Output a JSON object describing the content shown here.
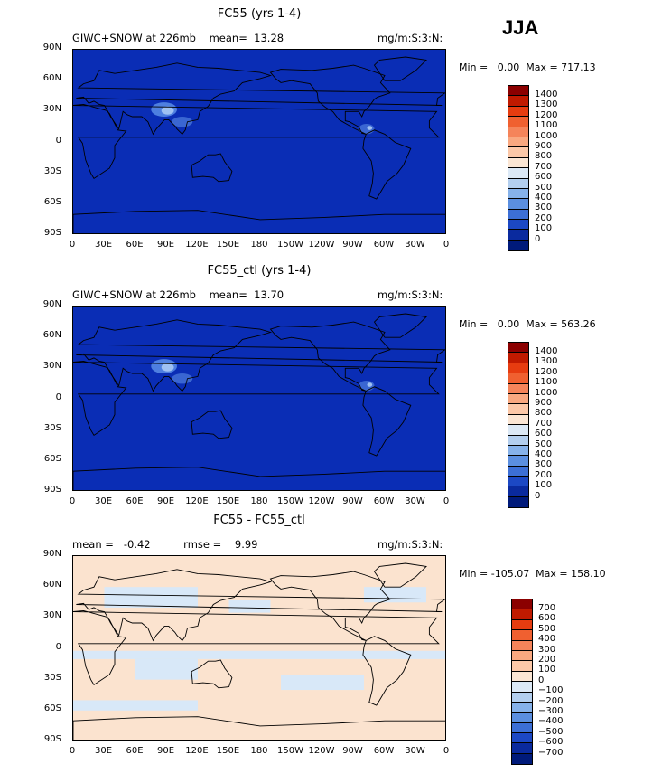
{
  "season": "JJA",
  "panels": [
    {
      "title": "FC55 (yrs 1-4)",
      "left_info": "GIWC+SNOW at 226mb    mean=  13.28",
      "right_info": "mg/m:S:3:N:",
      "minmax": "Min =   0.00  Max = 717.13",
      "colorbar_labels": [
        "1400",
        "1300",
        "1200",
        "1100",
        "1000",
        "900",
        "800",
        "700",
        "600",
        "500",
        "400",
        "300",
        "200",
        "100",
        "0"
      ],
      "colorbar_colors": [
        "#8b0000",
        "#c01a00",
        "#e63c10",
        "#f06030",
        "#f5845a",
        "#f9a880",
        "#fcc8a8",
        "#fbe6d4",
        "#dce9f6",
        "#b3cfef",
        "#86b2ea",
        "#5b8fe0",
        "#3c6fd6",
        "#1c48c4",
        "#0a2a9e",
        "#001a7a"
      ]
    },
    {
      "title": "FC55_ctl (yrs 1-4)",
      "left_info": "GIWC+SNOW at 226mb    mean=  13.70",
      "right_info": "mg/m:S:3:N:",
      "minmax": "Min =   0.00  Max = 563.26",
      "colorbar_labels": [
        "1400",
        "1300",
        "1200",
        "1100",
        "1000",
        "900",
        "800",
        "700",
        "600",
        "500",
        "400",
        "300",
        "200",
        "100",
        "0"
      ],
      "colorbar_colors": [
        "#8b0000",
        "#c01a00",
        "#e63c10",
        "#f06030",
        "#f5845a",
        "#f9a880",
        "#fcc8a8",
        "#fbe6d4",
        "#dce9f6",
        "#b3cfef",
        "#86b2ea",
        "#5b8fe0",
        "#3c6fd6",
        "#1c48c4",
        "#0a2a9e",
        "#001a7a"
      ]
    },
    {
      "title": "FC55 - FC55_ctl",
      "left_info": "mean =   -0.42          rmse =    9.99",
      "right_info": "mg/m:S:3:N:",
      "minmax": "Min = -105.07  Max = 158.10",
      "colorbar_labels": [
        "700",
        "600",
        "500",
        "400",
        "300",
        "200",
        "100",
        "0",
        "−100",
        "−200",
        "−300",
        "−400",
        "−500",
        "−600",
        "−700"
      ],
      "colorbar_colors": [
        "#8b0000",
        "#c01a00",
        "#e63c10",
        "#f06030",
        "#f5845a",
        "#f9a880",
        "#fcc8a8",
        "#fbe6d4",
        "#dce9f6",
        "#b3cfef",
        "#86b2ea",
        "#5b8fe0",
        "#3c6fd6",
        "#1c48c4",
        "#0a2a9e",
        "#001a7a"
      ]
    }
  ],
  "lat_labels": [
    "90N",
    "60N",
    "30N",
    "0",
    "30S",
    "60S",
    "90S"
  ],
  "lon_labels": [
    "0",
    "30E",
    "60E",
    "90E",
    "120E",
    "150E",
    "180",
    "150W",
    "120W",
    "90W",
    "60W",
    "30W",
    "0"
  ],
  "colors": {
    "field_blue": "#0a2db5",
    "diff_peach": "#fbe3cf",
    "diff_blue": "#d8e8f8"
  }
}
